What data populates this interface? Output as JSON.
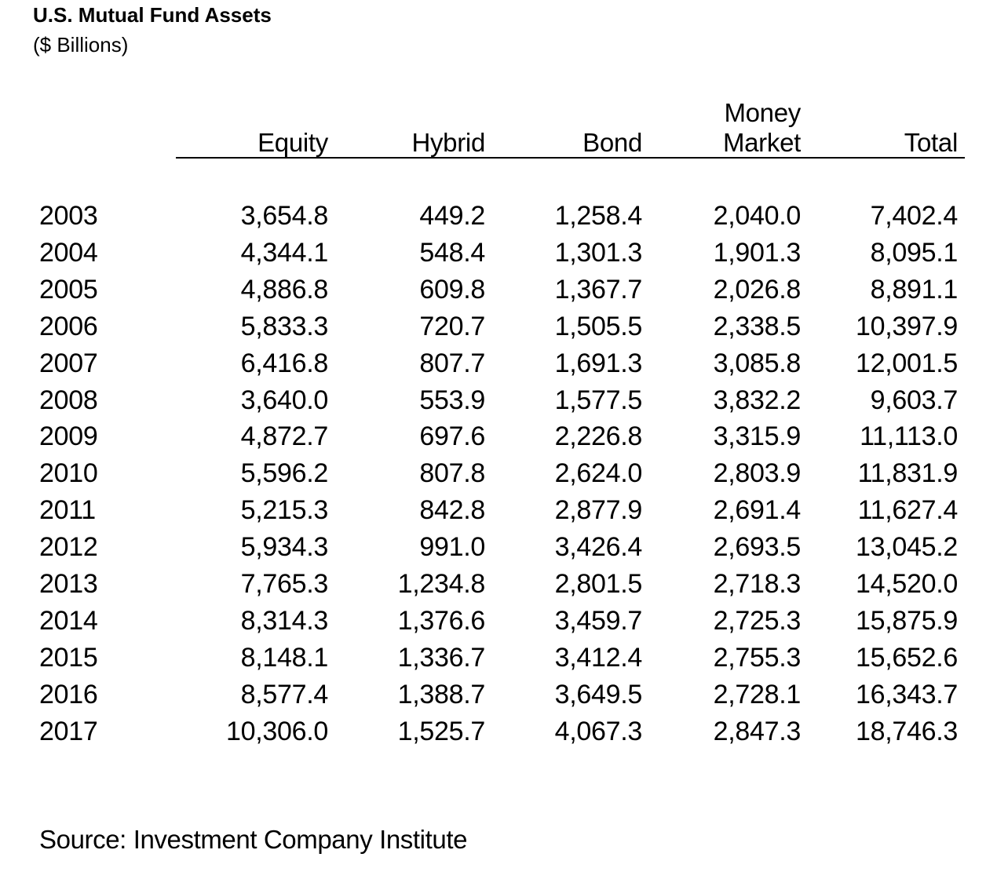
{
  "title": "U.S. Mutual Fund Assets",
  "subtitle": "($ Billions)",
  "source": "Source: Investment Company Institute",
  "chart_data": {
    "type": "table",
    "title": "U.S. Mutual Fund Assets",
    "subtitle": "($ Billions)",
    "columns": [
      {
        "key": "equity",
        "label_lines": [
          "Equity"
        ]
      },
      {
        "key": "hybrid",
        "label_lines": [
          "Hybrid"
        ]
      },
      {
        "key": "bond",
        "label_lines": [
          "Bond"
        ]
      },
      {
        "key": "money_market",
        "label_lines": [
          "Money",
          "Market"
        ]
      },
      {
        "key": "total",
        "label_lines": [
          "Total"
        ]
      }
    ],
    "rows": [
      {
        "year": "2003",
        "values": [
          "3,654.8",
          "449.2",
          "1,258.4",
          "2,040.0",
          "7,402.4"
        ]
      },
      {
        "year": "2004",
        "values": [
          "4,344.1",
          "548.4",
          "1,301.3",
          "1,901.3",
          "8,095.1"
        ]
      },
      {
        "year": "2005",
        "values": [
          "4,886.8",
          "609.8",
          "1,367.7",
          "2,026.8",
          "8,891.1"
        ]
      },
      {
        "year": "2006",
        "values": [
          "5,833.3",
          "720.7",
          "1,505.5",
          "2,338.5",
          "10,397.9"
        ]
      },
      {
        "year": "2007",
        "values": [
          "6,416.8",
          "807.7",
          "1,691.3",
          "3,085.8",
          "12,001.5"
        ]
      },
      {
        "year": "2008",
        "values": [
          "3,640.0",
          "553.9",
          "1,577.5",
          "3,832.2",
          "9,603.7"
        ]
      },
      {
        "year": "2009",
        "values": [
          "4,872.7",
          "697.6",
          "2,226.8",
          "3,315.9",
          "11,113.0"
        ]
      },
      {
        "year": "2010",
        "values": [
          "5,596.2",
          "807.8",
          "2,624.0",
          "2,803.9",
          "11,831.9"
        ]
      },
      {
        "year": "2011",
        "values": [
          "5,215.3",
          "842.8",
          "2,877.9",
          "2,691.4",
          "11,627.4"
        ]
      },
      {
        "year": "2012",
        "values": [
          "5,934.3",
          "991.0",
          "3,426.4",
          "2,693.5",
          "13,045.2"
        ]
      },
      {
        "year": "2013",
        "values": [
          "7,765.3",
          "1,234.8",
          "2,801.5",
          "2,718.3",
          "14,520.0"
        ]
      },
      {
        "year": "2014",
        "values": [
          "8,314.3",
          "1,376.6",
          "3,459.7",
          "2,725.3",
          "15,875.9"
        ]
      },
      {
        "year": "2015",
        "values": [
          "8,148.1",
          "1,336.7",
          "3,412.4",
          "2,755.3",
          "15,652.6"
        ]
      },
      {
        "year": "2016",
        "values": [
          "8,577.4",
          "1,388.7",
          "3,649.5",
          "2,728.1",
          "16,343.7"
        ]
      },
      {
        "year": "2017",
        "values": [
          "10,306.0",
          "1,525.7",
          "4,067.3",
          "2,847.3",
          "18,746.3"
        ]
      }
    ]
  }
}
